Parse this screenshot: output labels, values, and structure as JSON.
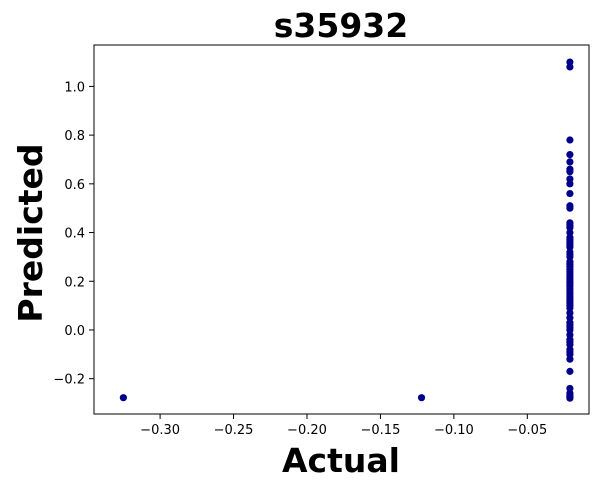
{
  "chart_data": {
    "type": "scatter",
    "title": "s35932",
    "xlabel": "Actual",
    "ylabel": "Predicted",
    "xlim": [
      -0.345,
      -0.008
    ],
    "ylim": [
      -0.345,
      1.17
    ],
    "xticks": [
      -0.3,
      -0.25,
      -0.2,
      -0.15,
      -0.1,
      -0.05
    ],
    "xtick_labels": [
      "−0.30",
      "−0.25",
      "−0.20",
      "−0.15",
      "−0.10",
      "−0.05"
    ],
    "yticks": [
      -0.2,
      0.0,
      0.2,
      0.4,
      0.6,
      0.8,
      1.0
    ],
    "ytick_labels": [
      "−0.2",
      "0.0",
      "0.2",
      "0.4",
      "0.6",
      "0.8",
      "1.0"
    ],
    "grid": false,
    "point_color": "#00008b",
    "series": [
      {
        "x": [
          -0.325,
          -0.122,
          -0.021,
          -0.021,
          -0.021,
          -0.021,
          -0.021,
          -0.021,
          -0.021,
          -0.021,
          -0.021,
          -0.021,
          -0.021,
          -0.021,
          -0.021,
          -0.021,
          -0.021,
          -0.021,
          -0.021,
          -0.021,
          -0.021,
          -0.021,
          -0.021,
          -0.021,
          -0.021,
          -0.021,
          -0.021,
          -0.021,
          -0.021,
          -0.021,
          -0.021,
          -0.021,
          -0.021,
          -0.021,
          -0.021,
          -0.021,
          -0.021,
          -0.021,
          -0.021,
          -0.021,
          -0.021,
          -0.021,
          -0.021,
          -0.021,
          -0.021,
          -0.021,
          -0.021,
          -0.021,
          -0.021,
          -0.021,
          -0.021,
          -0.021,
          -0.021,
          -0.021,
          -0.021,
          -0.021,
          -0.021,
          -0.021,
          -0.021,
          -0.021,
          -0.021,
          -0.021,
          -0.021,
          -0.021,
          -0.021,
          -0.021
        ],
        "y": [
          -0.278,
          -0.278,
          -0.28,
          -0.275,
          -0.27,
          -0.26,
          -0.24,
          -0.17,
          -0.12,
          -0.1,
          -0.08,
          -0.06,
          -0.04,
          -0.02,
          0.0,
          0.02,
          0.05,
          0.07,
          0.09,
          0.1,
          0.12,
          0.14,
          0.16,
          0.18,
          0.2,
          0.22,
          0.24,
          0.25,
          0.26,
          0.28,
          0.3,
          0.32,
          0.34,
          0.36,
          0.38,
          0.4,
          0.42,
          0.44,
          0.5,
          0.51,
          0.56,
          0.6,
          0.62,
          0.65,
          0.69,
          0.72,
          0.78,
          1.08,
          1.1,
          0.13,
          0.15,
          0.17,
          0.21,
          0.27,
          0.31,
          0.35,
          0.37,
          0.43,
          0.66,
          -0.09,
          -0.05,
          0.01,
          0.03,
          0.11,
          0.19,
          0.23
        ]
      }
    ]
  }
}
